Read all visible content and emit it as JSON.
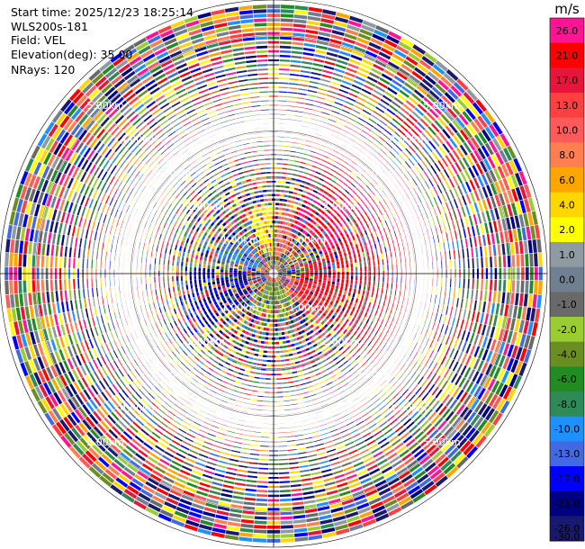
{
  "header": {
    "start_time": "Start time: 2025/12/23 18:25:14",
    "instrument": "WLS200s-181",
    "field": "Field: VEL",
    "elevation": "Elevation(deg): 35.00",
    "nrays": "NRays: 120"
  },
  "chart_data": {
    "type": "heatmap",
    "projection": "polar-ppi",
    "instrument": "WLS200s-181",
    "field": "VEL",
    "start_time": "2025/12/23 18:25:14",
    "elevation_deg": 35.0,
    "n_rays": 120,
    "range_rings_km": [
      1.0,
      2.0,
      3.0,
      4.0,
      5.0
    ],
    "range_ring_labels": [
      "1.00km",
      "2.00km",
      "3.00km",
      "4.00km",
      "5.00km"
    ],
    "max_range_km": 5.75,
    "grid": true,
    "colorbar": {
      "unit": "m/s",
      "placement": "right",
      "levels": [
        {
          "label": "26.0",
          "color": "#ff1493"
        },
        {
          "label": "21.0",
          "color": "#ff0000"
        },
        {
          "label": "17.0",
          "color": "#e8153a"
        },
        {
          "label": "13.0",
          "color": "#ff4040"
        },
        {
          "label": "10.0",
          "color": "#ff5a5a"
        },
        {
          "label": "8.0",
          "color": "#ff7f50"
        },
        {
          "label": "6.0",
          "color": "#ffa500"
        },
        {
          "label": "4.0",
          "color": "#ffd700"
        },
        {
          "label": "2.0",
          "color": "#ffff00"
        },
        {
          "label": "1.0",
          "color": "#8f9aa3"
        },
        {
          "label": "0.0",
          "color": "#708090"
        },
        {
          "label": "-1.0",
          "color": "#696969"
        },
        {
          "label": "-2.0",
          "color": "#9acd32"
        },
        {
          "label": "-4.0",
          "color": "#6b8e23"
        },
        {
          "label": "-6.0",
          "color": "#228b22"
        },
        {
          "label": "-8.0",
          "color": "#2e8b57"
        },
        {
          "label": "-10.0",
          "color": "#1e90ff"
        },
        {
          "label": "-13.0",
          "color": "#4169e1"
        },
        {
          "label": "-17.0",
          "color": "#0000ff"
        },
        {
          "label": "-21.0",
          "color": "#000080"
        },
        {
          "label": "-26.0",
          "color": "#191970"
        },
        {
          "label": "-30.0",
          "color": "#191970"
        }
      ]
    },
    "dominant_patterns": [
      {
        "azimuth_range_deg": [
          20,
          75
        ],
        "range_km": [
          1.0,
          3.5
        ],
        "velocity_ms": 26.0
      },
      {
        "azimuth_range_deg": [
          75,
          130
        ],
        "range_km": [
          0.5,
          3.0
        ],
        "velocity_ms": 21.0
      },
      {
        "azimuth_range_deg": [
          100,
          140
        ],
        "range_km": [
          0.3,
          1.5
        ],
        "velocity_ms": 13.0
      },
      {
        "azimuth_range_deg": [
          5,
          25
        ],
        "range_km": [
          0.3,
          1.5
        ],
        "velocity_ms": 10.0
      },
      {
        "azimuth_range_deg": [
          -25,
          0
        ],
        "range_km": [
          0.3,
          1.5
        ],
        "velocity_ms": 4.0
      },
      {
        "azimuth_range_deg": [
          285,
          320
        ],
        "range_km": [
          0.3,
          1.3
        ],
        "velocity_ms": -10.0
      },
      {
        "azimuth_range_deg": [
          150,
          215
        ],
        "range_km": [
          0.1,
          1.0
        ],
        "velocity_ms": -2.0
      },
      {
        "azimuth_range_deg": [
          230,
          275
        ],
        "range_km": [
          0.5,
          2.0
        ],
        "velocity_ms": -17.0
      }
    ]
  }
}
